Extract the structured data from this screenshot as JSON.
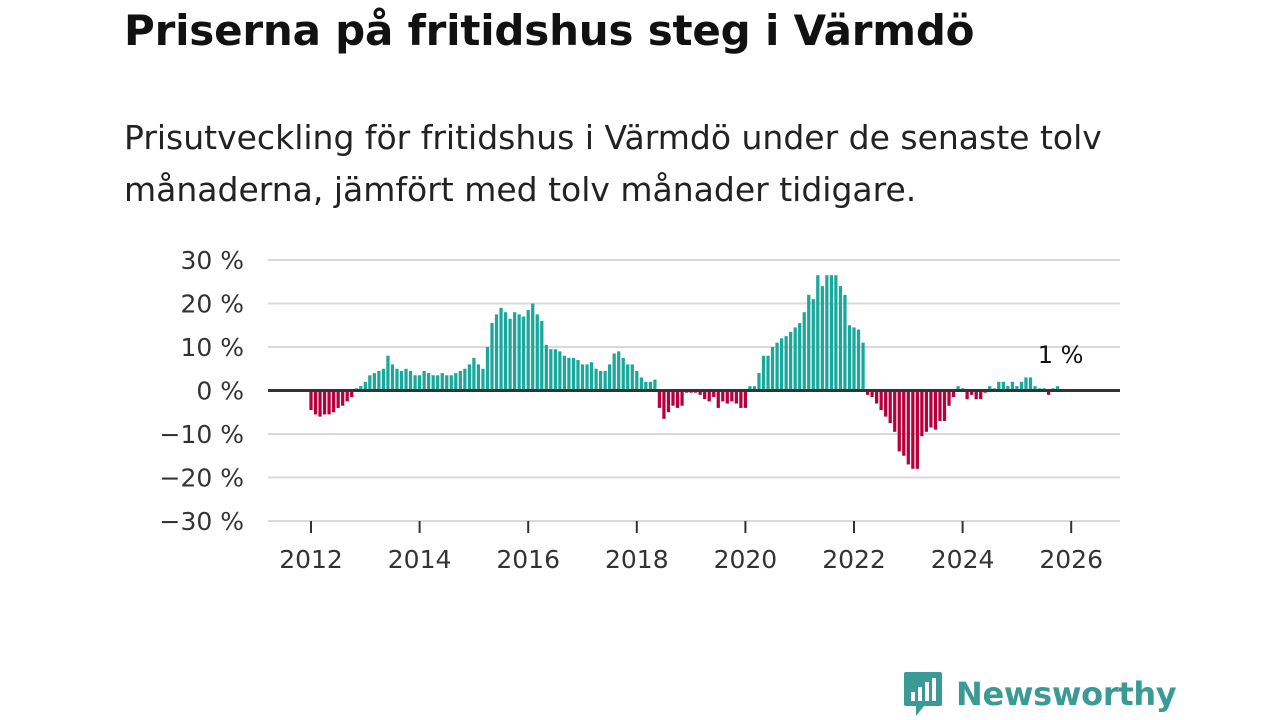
{
  "title": "Priserna på fritidshus steg i Värmdö",
  "subtitle": "Prisutveckling för fritidshus i Värmdö under de senaste tolv månaderna, jämfört med tolv månader tidigare.",
  "brand": {
    "name": "Newsworthy"
  },
  "colors": {
    "positive": "#1aa89c",
    "negative": "#b5003c",
    "grid": "#d9d9d9",
    "zero": "#333333"
  },
  "chart_data": {
    "type": "bar",
    "x_start": 2012.0,
    "x_step": 0.0833333,
    "ylim": [
      -30,
      30
    ],
    "yticks": [
      30,
      20,
      10,
      0,
      -10,
      -20,
      -30
    ],
    "ytick_labels": [
      "30 %",
      "20 %",
      "10 %",
      "0 %",
      "−10 %",
      "−20 %",
      "−30 %"
    ],
    "xticks": [
      2012,
      2014,
      2016,
      2018,
      2020,
      2022,
      2024,
      2026
    ],
    "xtick_labels": [
      "2012",
      "2014",
      "2016",
      "2018",
      "2020",
      "2022",
      "2024",
      "2026"
    ],
    "annotation": {
      "text": "1 %",
      "value": 1
    },
    "values": [
      -4.5,
      -5.5,
      -6.0,
      -5.5,
      -5.5,
      -5.0,
      -4.0,
      -3.5,
      -2.5,
      -1.5,
      0.5,
      1.0,
      2.0,
      3.5,
      4.0,
      4.5,
      5.0,
      8.0,
      6.0,
      5.0,
      4.5,
      5.0,
      4.5,
      3.5,
      3.5,
      4.5,
      4.0,
      3.5,
      3.5,
      4.0,
      3.5,
      3.5,
      4.0,
      4.5,
      5.0,
      6.0,
      7.5,
      6.0,
      5.0,
      10.0,
      15.5,
      17.5,
      19.0,
      18.0,
      16.5,
      18.0,
      17.5,
      17.0,
      18.5,
      20.0,
      17.5,
      16.0,
      10.5,
      9.5,
      9.5,
      9.0,
      8.0,
      7.5,
      7.5,
      7.0,
      6.0,
      6.0,
      6.5,
      5.0,
      4.5,
      4.5,
      6.0,
      8.5,
      9.0,
      7.5,
      6.0,
      6.0,
      4.5,
      3.0,
      2.0,
      2.0,
      2.5,
      -4.0,
      -6.5,
      -5.0,
      -3.5,
      -4.0,
      -3.5,
      -0.5,
      -0.5,
      -0.5,
      -1.0,
      -2.0,
      -2.5,
      -1.5,
      -4.0,
      -2.5,
      -3.0,
      -2.5,
      -3.0,
      -4.0,
      -4.0,
      1.0,
      1.0,
      4.0,
      8.0,
      8.0,
      10.0,
      11.0,
      12.0,
      12.5,
      13.5,
      14.5,
      15.5,
      18.0,
      22.0,
      21.0,
      26.5,
      24.0,
      26.5,
      26.5,
      26.5,
      24.0,
      22.0,
      15.0,
      14.5,
      14.0,
      11.0,
      -1.0,
      -1.5,
      -3.0,
      -4.5,
      -6.0,
      -7.5,
      -9.5,
      -14.0,
      -15.0,
      -17.0,
      -18.0,
      -18.0,
      -10.5,
      -9.5,
      -8.5,
      -9.0,
      -7.0,
      -7.0,
      -3.5,
      -1.5,
      1.0,
      0.5,
      -2.0,
      -1.0,
      -2.0,
      -2.0,
      -0.5,
      1.0,
      0.5,
      2.0,
      2.0,
      1.0,
      2.0,
      1.0,
      2.0,
      3.0,
      3.0,
      1.0,
      0.5,
      0.5,
      -1.0,
      0.5,
      1.0
    ]
  }
}
